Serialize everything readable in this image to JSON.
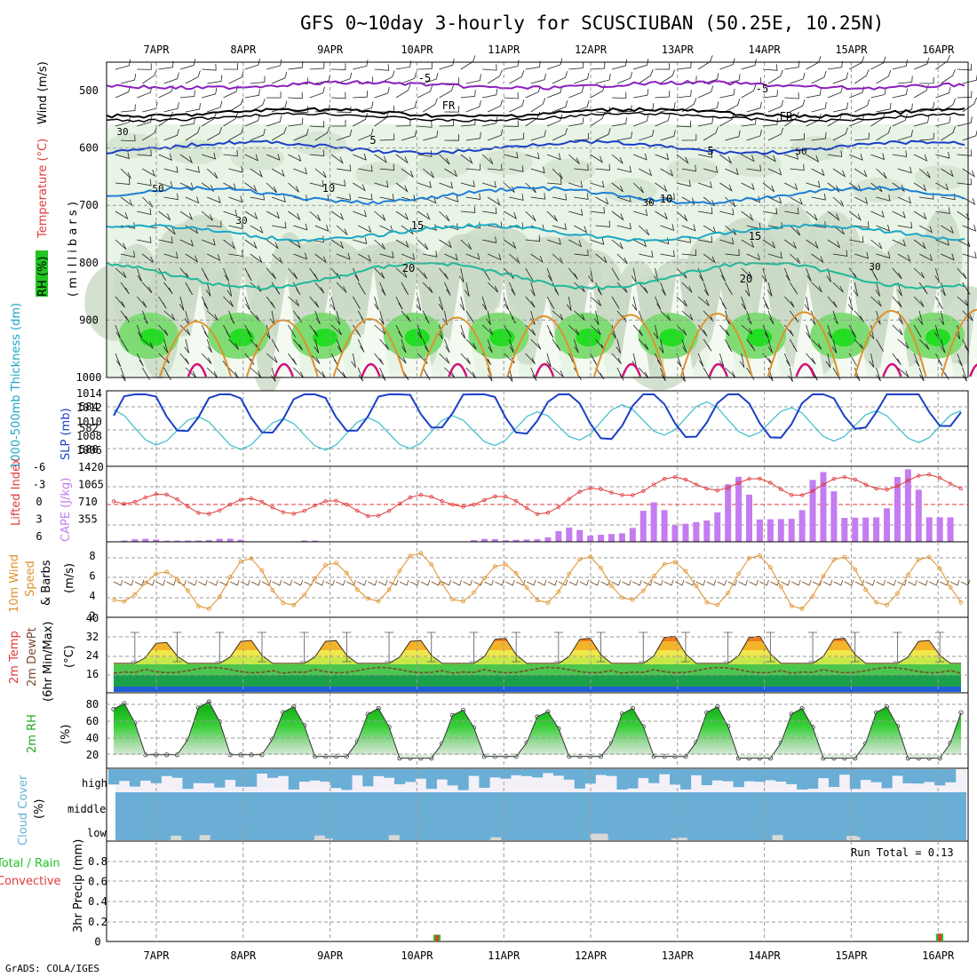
{
  "title": "GFS 0~10day 3-hourly for SCUSCIUBAN (50.25E, 10.25N)",
  "credit": "GrADS: COLA/IGES",
  "dates": [
    "7APR",
    "8APR",
    "9APR",
    "10APR",
    "11APR",
    "12APR",
    "13APR",
    "14APR",
    "15APR",
    "16APR"
  ],
  "colors": {
    "purple": "#8c1fc0",
    "blue_dark": "#1a3fc8",
    "blue_mid": "#1e7fd6",
    "cyan": "#19a8c4",
    "teal": "#20b89a",
    "orange": "#e0902a",
    "magenta": "#d0107a",
    "cyan_line": "#38bcc8",
    "red": "#e03a3a",
    "bar_purple": "#c47cf0",
    "dew": "#7a4a32",
    "green_rh": "#22c422",
    "cloud_blue": "#6aaed6",
    "cloud_gray": "#d7d7d7"
  },
  "upper_air": {
    "label_rh": "RH (%)",
    "label_temp": "Temperature (°C)",
    "label_wind": "Wind (m/s)",
    "label_mb": "( m i l l i b a r s )",
    "yticks": [
      "500",
      "600",
      "700",
      "800",
      "900",
      "1000"
    ],
    "contours": [
      {
        "label": "-5",
        "level": "-5"
      },
      {
        "label": "FR",
        "level": "FR"
      },
      {
        "label": "5",
        "level": "5"
      },
      {
        "label": "10",
        "level": "10"
      },
      {
        "label": "15",
        "level": "15"
      },
      {
        "label": "20",
        "level": "20"
      }
    ],
    "rh_labels": [
      "30",
      "50",
      "30",
      "30",
      "50",
      "30"
    ]
  },
  "panels": {
    "thickness": {
      "label_left": "1000-500mb Thickness (dm)",
      "label_right": "SLP (mb)",
      "left_ticks": [
        "584",
        "582",
        "580"
      ],
      "right_ticks": [
        "1014",
        "1012",
        "1010",
        "1008",
        "1006"
      ]
    },
    "cape": {
      "label_left": "Lifted Index",
      "label_right": "CAPE (J/kg)",
      "left_ticks": [
        "-6",
        "-3",
        "0",
        "3",
        "6"
      ],
      "right_ticks": [
        "1420",
        "1065",
        "710",
        "355"
      ]
    },
    "wind10m": {
      "label1": "10m Wind",
      "label2": "Speed",
      "label3": "& Barbs",
      "label4": "(m/s)",
      "ticks": [
        "8",
        "6",
        "4",
        "2"
      ]
    },
    "temp2m": {
      "label1": "2m Temp",
      "label2": "2m DewPt",
      "label3": "(6hr Min/Max)",
      "label4": "(°C)",
      "ticks": [
        "40",
        "32",
        "24",
        "16"
      ]
    },
    "rh2m": {
      "label1": "2m RH",
      "label2": "(%)",
      "ticks": [
        "80",
        "60",
        "40",
        "20"
      ]
    },
    "cloud": {
      "label1": "Cloud Cover",
      "label2": "(%)",
      "levels": [
        "high",
        "middle",
        "low"
      ]
    },
    "precip": {
      "label1": "3hr Precip (mm)",
      "label2": "Total / Rain",
      "label3": "Convective",
      "run_total": "Run Total = 0.13",
      "ticks": [
        "0.8",
        "0.6",
        "0.4",
        "0.2",
        "0"
      ]
    }
  },
  "chart_data": [
    {
      "type": "line",
      "title": "1000-500mb Thickness (dm)",
      "x": [
        "7APR",
        "8APR",
        "9APR",
        "10APR",
        "11APR",
        "12APR",
        "13APR",
        "14APR",
        "15APR",
        "16APR"
      ],
      "series": [
        {
          "name": "Thickness",
          "values": [
            581.8,
            581.1,
            580.9,
            581.0,
            581.2,
            581.6,
            582.3,
            582.6,
            582.0,
            581.7
          ]
        }
      ]
    },
    {
      "type": "line",
      "title": "SLP (mb)",
      "x": [
        "7APR",
        "8APR",
        "9APR",
        "10APR",
        "11APR",
        "12APR",
        "13APR",
        "14APR",
        "15APR",
        "16APR"
      ],
      "series": [
        {
          "name": "SLP",
          "values": [
            1012.0,
            1011.8,
            1011.6,
            1011.9,
            1012.3,
            1011.4,
            1010.8,
            1011.2,
            1011.0,
            1012.4
          ]
        }
      ]
    },
    {
      "type": "line",
      "title": "Lifted Index",
      "x": [
        "7APR",
        "8APR",
        "9APR",
        "10APR",
        "11APR",
        "12APR",
        "13APR",
        "14APR",
        "15APR",
        "16APR"
      ],
      "series": [
        {
          "name": "LI",
          "values": [
            -1.5,
            0.3,
            0.2,
            0.8,
            -1.0,
            0.5,
            -2.5,
            -3.5,
            -2.5,
            -3.5
          ]
        }
      ]
    },
    {
      "type": "bar",
      "title": "CAPE (J/kg)",
      "x": [
        "7APR",
        "8APR",
        "9APR",
        "10APR",
        "11APR",
        "12APR",
        "13APR",
        "14APR",
        "15APR",
        "16APR"
      ],
      "series": [
        {
          "name": "CAPE",
          "values": [
            40,
            60,
            30,
            0,
            0,
            120,
            400,
            1000,
            1080,
            1150
          ]
        }
      ]
    },
    {
      "type": "line",
      "title": "10m Wind Speed (m/s)",
      "x": [
        "7APR",
        "8APR",
        "9APR",
        "10APR",
        "11APR",
        "12APR",
        "13APR",
        "14APR",
        "15APR",
        "16APR"
      ],
      "series": [
        {
          "name": "Speed max",
          "values": [
            6.0,
            7.8,
            7.2,
            8.5,
            7.0,
            8.0,
            7.3,
            8.2,
            8.0,
            8.0
          ]
        },
        {
          "name": "Speed min",
          "values": [
            2.0,
            1.0,
            1.5,
            2.0,
            2.0,
            1.8,
            2.2,
            1.5,
            1.0,
            1.5
          ]
        }
      ]
    },
    {
      "type": "area",
      "title": "2m Temp (°C)",
      "x": [
        "7APR",
        "8APR",
        "9APR",
        "10APR",
        "11APR",
        "12APR",
        "13APR",
        "14APR",
        "15APR",
        "16APR"
      ],
      "series": [
        {
          "name": "Temp max",
          "values": [
            33,
            34,
            34,
            34,
            35,
            35,
            36,
            36,
            35,
            34
          ]
        },
        {
          "name": "Temp min",
          "values": [
            24,
            24,
            24,
            24,
            24,
            24,
            24,
            24,
            24,
            24
          ]
        },
        {
          "name": "DewPt",
          "values": [
            20,
            20,
            20,
            19,
            20,
            19,
            20,
            21,
            20,
            21
          ]
        }
      ]
    },
    {
      "type": "area",
      "title": "2m RH (%)",
      "x": [
        "7APR",
        "8APR",
        "9APR",
        "10APR",
        "11APR",
        "12APR",
        "13APR",
        "14APR",
        "15APR",
        "16APR"
      ],
      "series": [
        {
          "name": "RH max",
          "values": [
            88,
            90,
            84,
            82,
            80,
            78,
            82,
            84,
            82,
            84
          ]
        },
        {
          "name": "RH min",
          "values": [
            26,
            26,
            24,
            22,
            24,
            24,
            24,
            22,
            22,
            22
          ]
        }
      ]
    },
    {
      "type": "bar",
      "title": "3hr Precip (mm)",
      "x": [
        "10APR",
        "16APR"
      ],
      "series": [
        {
          "name": "Total",
          "values": [
            0.06,
            0.07
          ]
        }
      ],
      "run_total": 0.13,
      "ylim": [
        0,
        0.9
      ]
    }
  ]
}
